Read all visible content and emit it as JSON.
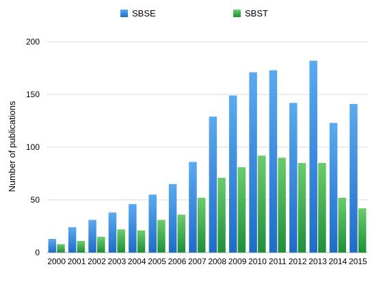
{
  "chart_data": {
    "type": "bar",
    "categories": [
      "2000",
      "2001",
      "2002",
      "2003",
      "2004",
      "2005",
      "2006",
      "2007",
      "2008",
      "2009",
      "2010",
      "2011",
      "2012",
      "2013",
      "2014",
      "2015"
    ],
    "series": [
      {
        "name": "SBSE",
        "color": "#2f7fd8",
        "values": [
          13,
          24,
          31,
          38,
          46,
          55,
          65,
          86,
          129,
          149,
          171,
          173,
          142,
          182,
          123,
          141
        ]
      },
      {
        "name": "SBST",
        "color": "#33a853",
        "values": [
          8,
          11,
          15,
          22,
          21,
          31,
          36,
          52,
          71,
          81,
          92,
          90,
          85,
          85,
          52,
          42
        ]
      }
    ],
    "ylabel": "Number of publications",
    "xlabel": "",
    "ylim": [
      0,
      200
    ],
    "yticks": [
      "0",
      "50",
      "100",
      "150",
      "200"
    ],
    "grid": true,
    "legend": "top"
  }
}
